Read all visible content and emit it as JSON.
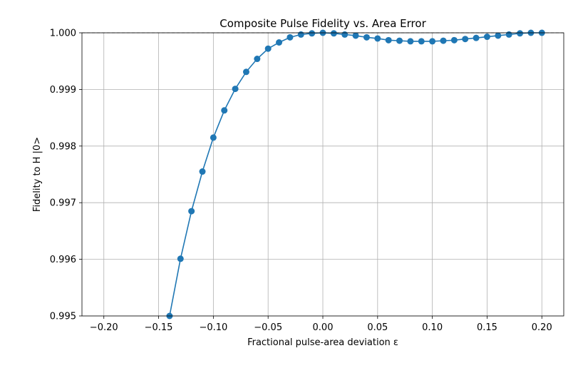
{
  "chart_data": {
    "type": "line",
    "title": "Composite Pulse Fidelity vs. Area Error",
    "xlabel": "Fractional pulse-area deviation ε",
    "ylabel": "Fidelity to H |0>",
    "xlim": [
      -0.22,
      0.22
    ],
    "ylim": [
      0.995,
      1.0
    ],
    "xticks": [
      -0.2,
      -0.15,
      -0.1,
      -0.05,
      0.0,
      0.05,
      0.1,
      0.15,
      0.2
    ],
    "xtick_labels": [
      "−0.20",
      "−0.15",
      "−0.10",
      "−0.05",
      "0.00",
      "0.05",
      "0.10",
      "0.15",
      "0.20"
    ],
    "yticks": [
      0.995,
      0.996,
      0.997,
      0.998,
      0.999,
      1.0
    ],
    "ytick_labels": [
      "0.995",
      "0.996",
      "0.997",
      "0.998",
      "0.999",
      "1.000"
    ],
    "grid": true,
    "reference_line": {
      "y": 1.0,
      "style": "dashed"
    },
    "marker": "circle",
    "series": [
      {
        "color": "#1f77b4",
        "x": [
          -0.14,
          -0.13,
          -0.12,
          -0.11,
          -0.1,
          -0.09,
          -0.08,
          -0.07,
          -0.06,
          -0.05,
          -0.04,
          -0.03,
          -0.02,
          -0.01,
          0.0,
          0.01,
          0.02,
          0.03,
          0.04,
          0.05,
          0.06,
          0.07,
          0.08,
          0.09,
          0.1,
          0.11,
          0.12,
          0.13,
          0.14,
          0.15,
          0.16,
          0.17,
          0.18,
          0.19,
          0.2
        ],
        "y": [
          0.995,
          0.99601,
          0.99685,
          0.99755,
          0.99815,
          0.99863,
          0.99901,
          0.99931,
          0.99954,
          0.99972,
          0.99983,
          0.99992,
          0.99997,
          0.99999,
          1.0,
          0.99999,
          0.99997,
          0.99995,
          0.99992,
          0.9999,
          0.99987,
          0.99986,
          0.99985,
          0.99985,
          0.99985,
          0.99986,
          0.99987,
          0.99989,
          0.99991,
          0.99993,
          0.99995,
          0.99997,
          0.99999,
          1.0,
          1.0
        ]
      }
    ]
  }
}
